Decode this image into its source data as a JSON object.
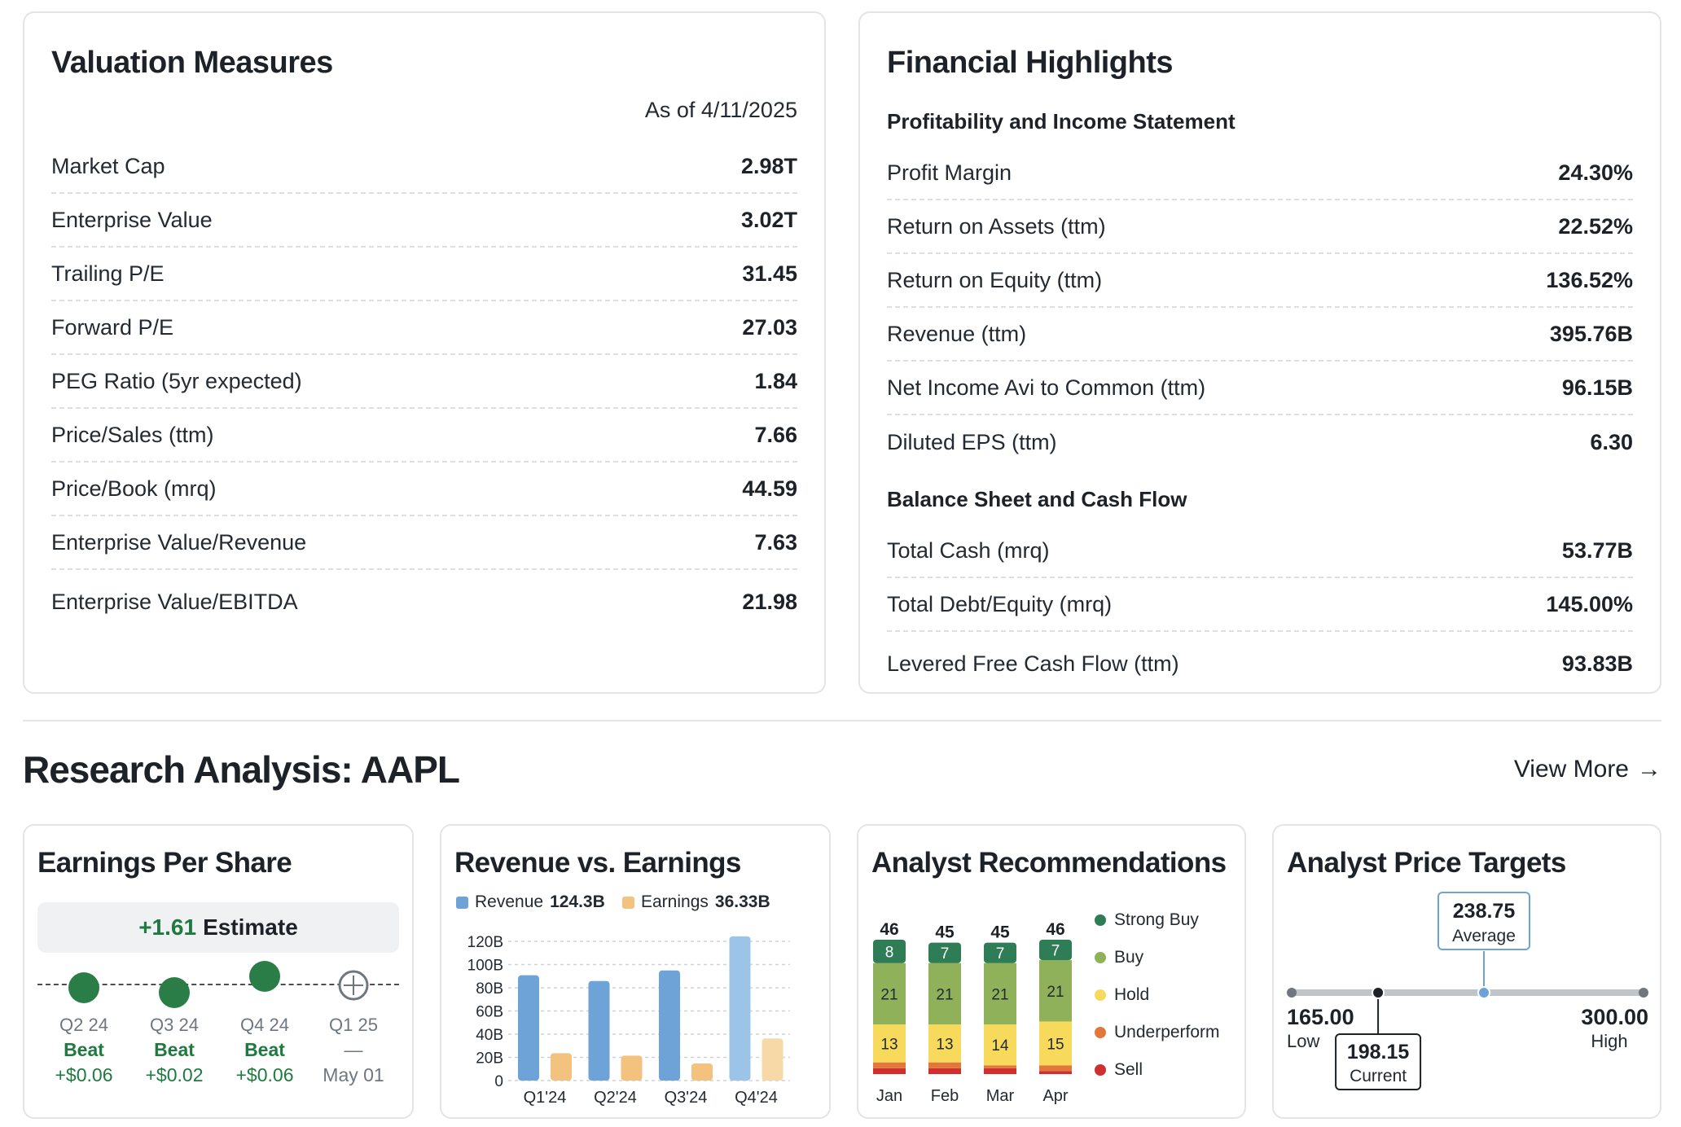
{
  "valuation": {
    "title": "Valuation Measures",
    "as_of": "As of 4/11/2025",
    "rows": [
      {
        "label": "Market Cap",
        "value": "2.98T"
      },
      {
        "label": "Enterprise Value",
        "value": "3.02T"
      },
      {
        "label": "Trailing P/E",
        "value": "31.45"
      },
      {
        "label": "Forward P/E",
        "value": "27.03"
      },
      {
        "label": "PEG Ratio (5yr expected)",
        "value": "1.84"
      },
      {
        "label": "Price/Sales (ttm)",
        "value": "7.66"
      },
      {
        "label": "Price/Book (mrq)",
        "value": "44.59"
      },
      {
        "label": "Enterprise Value/Revenue",
        "value": "7.63"
      },
      {
        "label": "Enterprise Value/EBITDA",
        "value": "21.98"
      }
    ]
  },
  "financial": {
    "title": "Financial Highlights",
    "section1": "Profitability and Income Statement",
    "rows1": [
      {
        "label": "Profit Margin",
        "value": "24.30%"
      },
      {
        "label": "Return on Assets (ttm)",
        "value": "22.52%"
      },
      {
        "label": "Return on Equity (ttm)",
        "value": "136.52%"
      },
      {
        "label": "Revenue (ttm)",
        "value": "395.76B"
      },
      {
        "label": "Net Income Avi to Common (ttm)",
        "value": "96.15B"
      },
      {
        "label": "Diluted EPS (ttm)",
        "value": "6.30"
      }
    ],
    "section2": "Balance Sheet and Cash Flow",
    "rows2": [
      {
        "label": "Total Cash (mrq)",
        "value": "53.77B"
      },
      {
        "label": "Total Debt/Equity (mrq)",
        "value": "145.00%"
      },
      {
        "label": "Levered Free Cash Flow (ttm)",
        "value": "93.83B"
      }
    ]
  },
  "research": {
    "title": "Research Analysis: AAPL",
    "view_more": "View More",
    "arrow": "→"
  },
  "eps": {
    "title": "Earnings Per Share",
    "estimate_value": "+1.61",
    "estimate_label": "Estimate",
    "quarters": [
      {
        "q": "Q2 24",
        "result": "Beat",
        "diff": "+$0.06"
      },
      {
        "q": "Q3 24",
        "result": "Beat",
        "diff": "+$0.02"
      },
      {
        "q": "Q4 24",
        "result": "Beat",
        "diff": "+$0.06"
      },
      {
        "q": "Q1 25",
        "result": "—",
        "diff": "May 01"
      }
    ]
  },
  "colors": {
    "revenue": "#6ea3d8",
    "revenue_latest": "#9cc4e8",
    "earnings": "#f2c27e",
    "earnings_latest": "#f7d9a7",
    "strong_buy": "#2f7d56",
    "buy": "#8fb15a",
    "hold": "#f7da5c",
    "underperform": "#e3773b",
    "sell": "#cf2f2f",
    "beat_green": "#1f7a40"
  },
  "revenue_card": {
    "title": "Revenue vs. Earnings",
    "legend_revenue": "Revenue",
    "legend_revenue_value": "124.3B",
    "legend_earnings": "Earnings",
    "legend_earnings_value": "36.33B"
  },
  "recommendations": {
    "title": "Analyst Recommendations",
    "legend": [
      "Strong Buy",
      "Buy",
      "Hold",
      "Underperform",
      "Sell"
    ]
  },
  "price_targets": {
    "title": "Analyst Price Targets",
    "low": "165.00",
    "low_label": "Low",
    "high": "300.00",
    "high_label": "High",
    "average": "238.75",
    "average_label": "Average",
    "current": "198.15",
    "current_label": "Current",
    "low_value": 165.0,
    "high_value": 300.0,
    "average_value": 238.75,
    "current_value": 198.15
  },
  "chart_data": [
    {
      "type": "bar",
      "title": "Revenue vs. Earnings",
      "categories": [
        "Q1'24",
        "Q2'24",
        "Q3'24",
        "Q4'24"
      ],
      "series": [
        {
          "name": "Revenue",
          "values": [
            90.75,
            85.78,
            94.93,
            124.3
          ]
        },
        {
          "name": "Earnings",
          "values": [
            23.64,
            21.45,
            14.74,
            36.33
          ]
        }
      ],
      "ylim": [
        0,
        120
      ],
      "yticks": [
        "0",
        "20B",
        "40B",
        "60B",
        "80B",
        "100B",
        "120B"
      ],
      "ytick_values": [
        0,
        20,
        40,
        60,
        80,
        100,
        120
      ]
    },
    {
      "type": "bar",
      "title": "Analyst Recommendations",
      "categories": [
        "Jan",
        "Feb",
        "Mar",
        "Apr"
      ],
      "totals": [
        "46",
        "45",
        "45",
        "46"
      ],
      "series": [
        {
          "name": "Strong Buy",
          "values": [
            8,
            7,
            7,
            7
          ]
        },
        {
          "name": "Buy",
          "values": [
            21,
            21,
            21,
            21
          ]
        },
        {
          "name": "Hold",
          "values": [
            13,
            13,
            14,
            15
          ]
        },
        {
          "name": "Underperform",
          "values": [
            2,
            2,
            1,
            2
          ]
        },
        {
          "name": "Sell",
          "values": [
            2,
            2,
            2,
            1
          ]
        }
      ]
    }
  ]
}
